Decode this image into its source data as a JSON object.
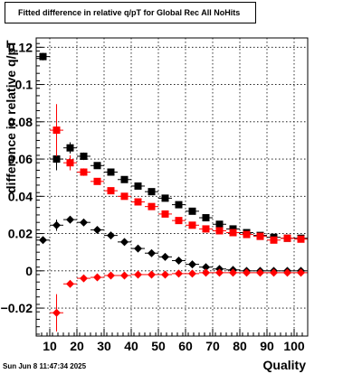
{
  "chart_data": {
    "type": "scatter",
    "title": "Fitted difference in relative q/pT for Global Rec All NoHits",
    "xlabel": "Quality",
    "ylabel": "difference in relative q/pT",
    "xlim": [
      5,
      105
    ],
    "ylim": [
      -0.035,
      0.125
    ],
    "x_ticks": [
      10,
      20,
      30,
      40,
      50,
      60,
      70,
      80,
      90,
      100
    ],
    "y_ticks": [
      -0.02,
      0,
      0.02,
      0.04,
      0.06,
      0.08,
      0.1,
      0.12
    ],
    "y_tick_labels": [
      "−0.02",
      "0",
      "0.02",
      "0.04",
      "0.06",
      "0.08",
      "0.1",
      "0.12"
    ],
    "grid": true,
    "timestamp": "Sun Jun  8 11:47:34 2025",
    "series": [
      {
        "color": "#000000",
        "marker": "square",
        "x": [
          7.5,
          12.5,
          17.5,
          22.5,
          27.5,
          32.5,
          37.5,
          42.5,
          47.5,
          52.5,
          57.5,
          62.5,
          67.5,
          72.5,
          77.5,
          82.5,
          87.5,
          92.5,
          97.5,
          102.5
        ],
        "y": [
          0.115,
          0.06,
          0.066,
          0.0615,
          0.0565,
          0.053,
          0.049,
          0.0455,
          0.0425,
          0.039,
          0.0355,
          0.032,
          0.0285,
          0.025,
          0.0225,
          0.0205,
          0.019,
          0.018,
          0.0175,
          0.0175
        ],
        "yerr": [
          0.002,
          0.006,
          0.003,
          0.002,
          0.0015,
          0.0012,
          0.001,
          0.001,
          0.001,
          0.001,
          0.001,
          0.001,
          0.001,
          0.001,
          0.001,
          0.001,
          0.001,
          0.001,
          0.001,
          0.001
        ]
      },
      {
        "color": "#ff0000",
        "marker": "square",
        "x": [
          12.5,
          17.5,
          22.5,
          27.5,
          32.5,
          37.5,
          42.5,
          47.5,
          52.5,
          57.5,
          62.5,
          67.5,
          72.5,
          77.5,
          82.5,
          87.5,
          92.5,
          97.5,
          102.5
        ],
        "y": [
          0.0755,
          0.058,
          0.053,
          0.048,
          0.043,
          0.04,
          0.037,
          0.0345,
          0.0305,
          0.027,
          0.0245,
          0.0225,
          0.0215,
          0.0205,
          0.0195,
          0.0185,
          0.0165,
          0.0175,
          0.017
        ],
        "yerr": [
          0.014,
          0.004,
          0.002,
          0.0015,
          0.0012,
          0.001,
          0.001,
          0.001,
          0.001,
          0.001,
          0.001,
          0.001,
          0.001,
          0.001,
          0.001,
          0.001,
          0.001,
          0.001,
          0.001
        ]
      },
      {
        "color": "#000000",
        "marker": "diamond",
        "x": [
          7.5,
          12.5,
          17.5,
          22.5,
          27.5,
          32.5,
          37.5,
          42.5,
          47.5,
          52.5,
          57.5,
          62.5,
          67.5,
          72.5,
          77.5,
          82.5,
          87.5,
          92.5,
          97.5,
          102.5
        ],
        "y": [
          0.0165,
          0.0245,
          0.0275,
          0.026,
          0.022,
          0.019,
          0.0155,
          0.012,
          0.0095,
          0.0075,
          0.0055,
          0.0035,
          0.002,
          0.001,
          0.0005,
          0.0,
          0.0,
          0.0,
          0.0,
          0.0
        ],
        "yerr": [
          0.001,
          0.003,
          0.002,
          0.0012,
          0.001,
          0.001,
          0.001,
          0.001,
          0.001,
          0.001,
          0.001,
          0.001,
          0.001,
          0.001,
          0.001,
          0.001,
          0.001,
          0.001,
          0.001,
          0.001
        ]
      },
      {
        "color": "#ff0000",
        "marker": "diamond",
        "x": [
          12.5,
          17.5,
          22.5,
          27.5,
          32.5,
          37.5,
          42.5,
          47.5,
          52.5,
          57.5,
          62.5,
          67.5,
          72.5,
          77.5,
          82.5,
          87.5,
          92.5,
          97.5,
          102.5
        ],
        "y": [
          -0.0225,
          -0.007,
          -0.004,
          -0.0035,
          -0.0025,
          -0.0025,
          -0.002,
          -0.002,
          -0.002,
          -0.0015,
          -0.0015,
          -0.001,
          -0.001,
          -0.001,
          -0.001,
          -0.001,
          -0.001,
          -0.001,
          -0.001
        ],
        "yerr": [
          0.01,
          0.002,
          0.001,
          0.001,
          0.001,
          0.001,
          0.001,
          0.001,
          0.001,
          0.001,
          0.001,
          0.001,
          0.001,
          0.001,
          0.001,
          0.001,
          0.001,
          0.001,
          0.001
        ]
      }
    ]
  }
}
